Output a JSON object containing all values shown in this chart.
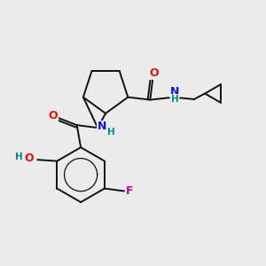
{
  "background_color": "#ebebeb",
  "figsize": [
    3.0,
    3.0
  ],
  "dpi": 100,
  "atom_colors": {
    "C": "#000000",
    "N": "#1010dd",
    "O": "#dd1010",
    "F": "#bb00bb",
    "H": "#008888"
  },
  "bond_color": "#111111",
  "bond_width": 1.4,
  "font_size": 9,
  "font_size_small": 7.5
}
